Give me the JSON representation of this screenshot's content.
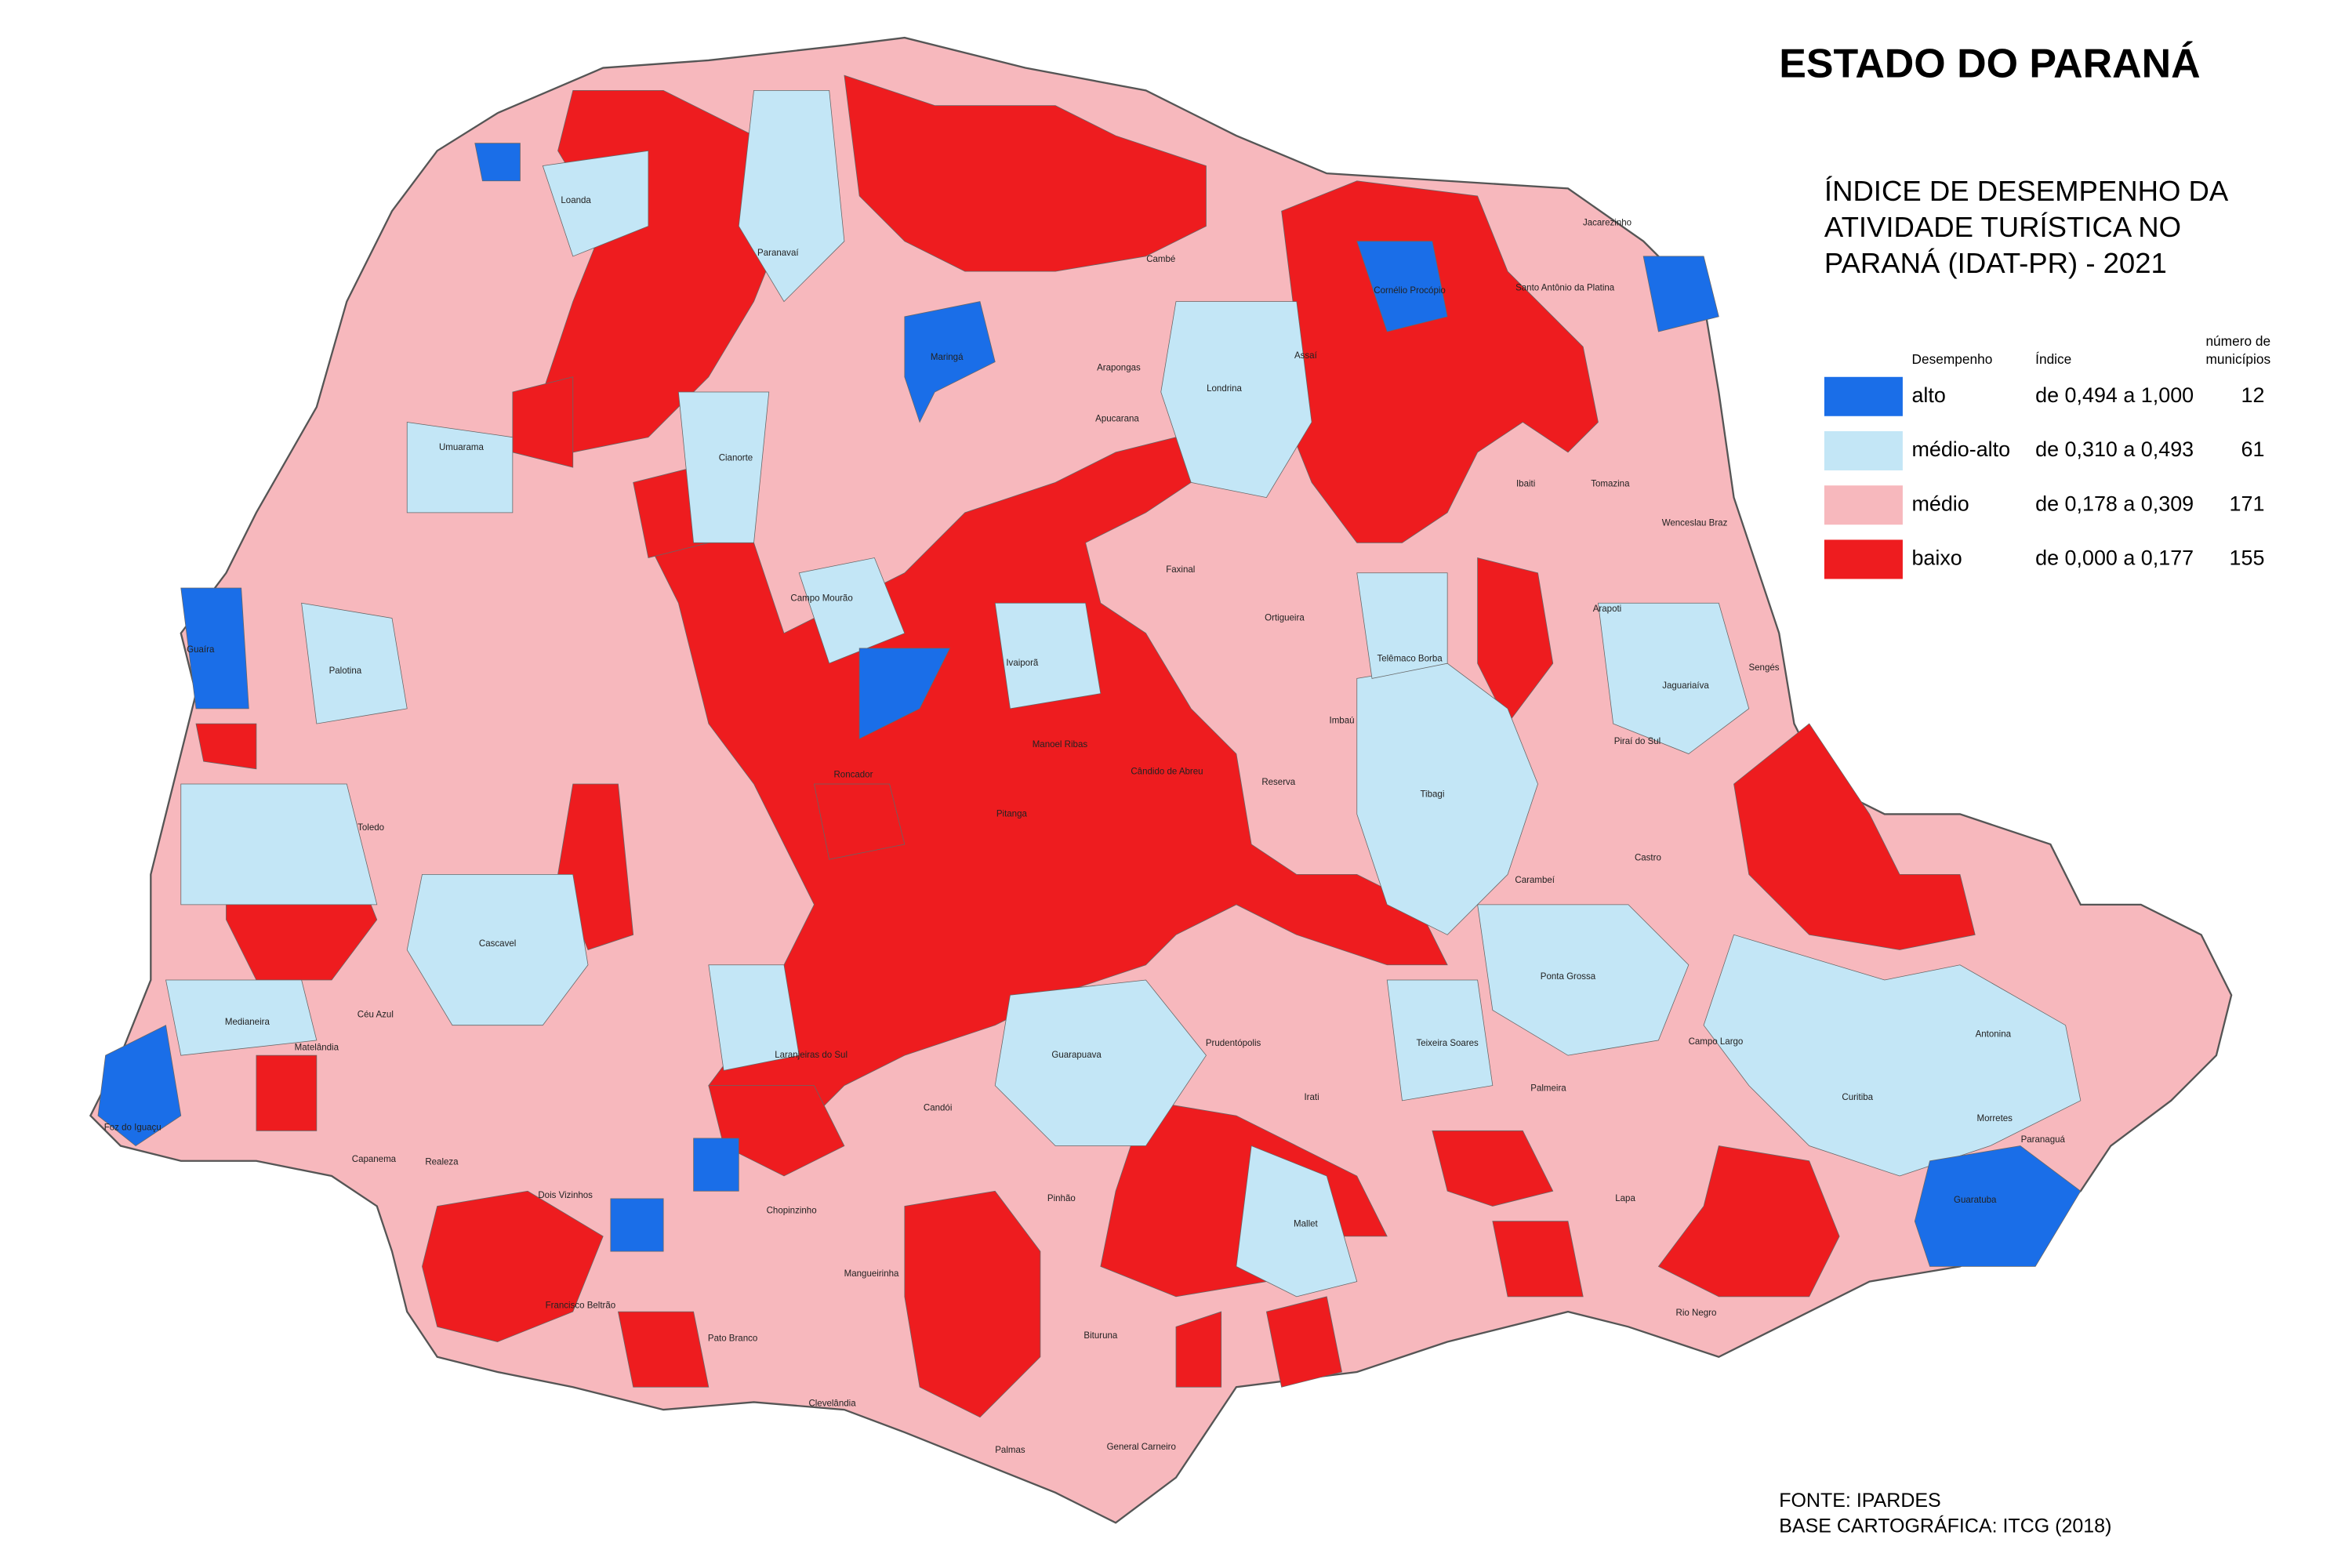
{
  "title": "ESTADO DO PARANÁ",
  "subtitle_lines": [
    "ÍNDICE DE DESEMPENHO DA",
    "ATIVIDADE TURÍSTICA NO",
    "PARANÁ (IDAT-PR) - 2021"
  ],
  "legend": {
    "headers": {
      "performance": "Desempenho",
      "index": "Índice",
      "count_line1": "número de",
      "count_line2": "municípios"
    },
    "items": [
      {
        "label": "alto",
        "range": "de 0,494 a 1,000",
        "count": 12,
        "color": "#1a6ee8"
      },
      {
        "label": "médio-alto",
        "range": "de 0,310 a 0,493",
        "count": 61,
        "color": "#c3e6f6"
      },
      {
        "label": "médio",
        "range": "de 0,178 a 0,309",
        "count": 171,
        "color": "#f7b8bd"
      },
      {
        "label": "baixo",
        "range": "de 0,000 a 0,177",
        "count": 155,
        "color": "#ee1c1f"
      }
    ]
  },
  "source": [
    "FONTE: IPARDES",
    "BASE CARTOGRÁFICA: ITCG (2018)"
  ],
  "map": {
    "municipality_labels": [
      "Curitiba",
      "Londrina",
      "Maringá",
      "Cascavel",
      "Foz do Iguaçu",
      "Ponta Grossa",
      "Guarapuava",
      "Guaratuba",
      "Paranaguá",
      "Toledo",
      "Umuarama",
      "Campo Mourão",
      "Tibagi",
      "Castro",
      "Lapa",
      "Pinhão",
      "Palmas",
      "Irati",
      "Prudentópolis",
      "Reserva",
      "Telêmaco Borba",
      "Jaguariaíva",
      "Sengés",
      "Arapoti",
      "Piraí do Sul",
      "Ortigueira",
      "Faxinal",
      "Apucarana",
      "Arapongas",
      "Cambé",
      "Cianorte",
      "Paranavaí",
      "Loanda",
      "Guaíra",
      "Palotina",
      "Pitanga",
      "Roncador",
      "Mangueirinha",
      "Chopinzinho",
      "Francisco Beltrão",
      "Pato Branco",
      "Clevelândia",
      "General Carneiro",
      "Bituruna",
      "Cândido de Abreu",
      "Imbaú",
      "Carambeí",
      "Palmeira",
      "Teixeira Soares",
      "Mallet",
      "Rio Negro",
      "Campo Largo",
      "Antonina",
      "Morretes",
      "Cornélio Procópio",
      "Ibaiti",
      "Santo Antônio da Platina",
      "Jacarezinho",
      "Wenceslau Braz",
      "Tomazina",
      "Assaí",
      "Ivaiporã",
      "Manoel Ribas",
      "Medianeira",
      "Matelândia",
      "Céu Azul",
      "Realeza",
      "Capanema",
      "Dois Vizinhos",
      "Candói",
      "Laranjeiras do Sul"
    ]
  }
}
